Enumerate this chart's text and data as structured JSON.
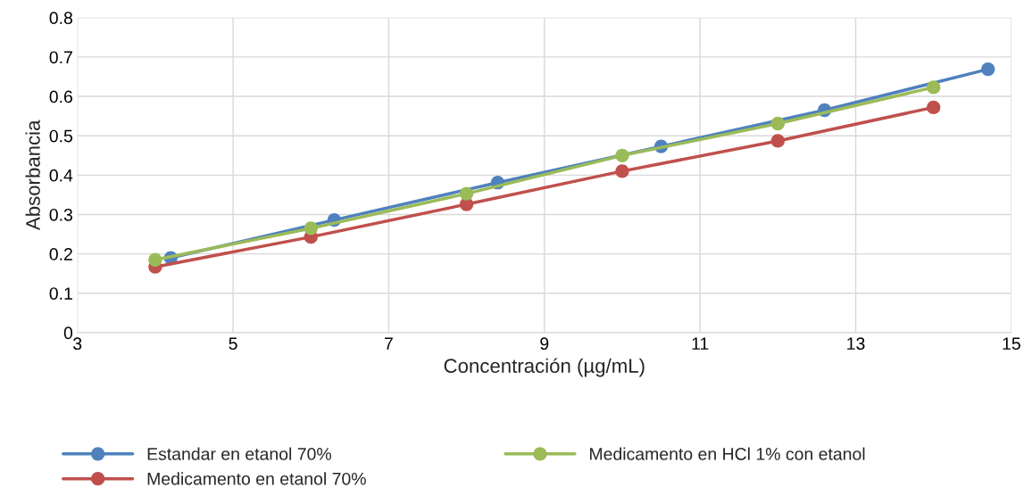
{
  "chart_data": {
    "type": "line",
    "xlabel": "Concentración (µg/mL)",
    "ylabel": "Absorbancia",
    "xlim": [
      3,
      15
    ],
    "xticks": [
      3,
      5,
      7,
      9,
      11,
      13,
      15
    ],
    "ylim": [
      0,
      0.8
    ],
    "yticks": [
      0,
      0.1,
      0.2,
      0.3,
      0.4,
      0.5,
      0.6,
      0.7,
      0.8
    ],
    "grid": true,
    "legend": "bottom",
    "marker": "circle",
    "line_style": "solid",
    "series": [
      {
        "name": "Estandar en etanol 70%",
        "color": "#4f81bd",
        "x": [
          4.2,
          6.3,
          8.4,
          10.5,
          12.6,
          14.7
        ],
        "values": [
          0.19,
          0.286,
          0.381,
          0.473,
          0.565,
          0.669
        ]
      },
      {
        "name": "Medicamento en etanol 70%",
        "color": "#c0504d",
        "x": [
          4,
          6,
          8,
          10,
          12,
          14
        ],
        "values": [
          0.167,
          0.243,
          0.326,
          0.41,
          0.487,
          0.572
        ]
      },
      {
        "name": "Medicamento en HCl 1% con etanol",
        "color": "#9bbb59",
        "x": [
          4,
          6,
          8,
          10,
          12,
          14
        ],
        "values": [
          0.185,
          0.265,
          0.353,
          0.45,
          0.531,
          0.623
        ]
      }
    ]
  }
}
